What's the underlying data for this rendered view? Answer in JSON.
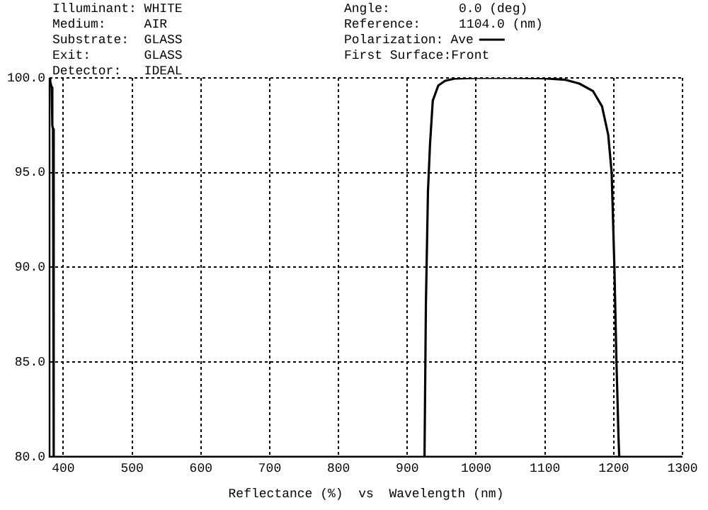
{
  "chart_data": {
    "type": "line",
    "xlabel": "Reflectance (%)  vs  Wavelength (nm)",
    "annotations": [
      "Illuminant: WHITE",
      "Medium:     AIR",
      "Substrate:  GLASS",
      "Exit:       GLASS",
      "Detector:   IDEAL",
      "Angle:         0.0 (deg)",
      "Reference:     1104.0 (nm)",
      "Polarization:",
      "First Surface:Front"
    ],
    "series": [
      {
        "name": "Ave",
        "color": "#000000",
        "x": [
          380,
          381,
          383,
          384,
          385,
          386,
          386.5,
          925,
          927,
          928,
          930,
          933,
          937,
          945,
          955,
          970,
          1000,
          1050,
          1100,
          1130,
          1150,
          1170,
          1183,
          1192,
          1197,
          1201,
          1204,
          1207,
          1208
        ],
        "values": [
          100,
          99.8,
          99.5,
          97.5,
          97.3,
          80,
          null,
          80,
          88,
          90,
          94,
          96.5,
          98.8,
          99.6,
          99.85,
          99.97,
          100,
          100,
          99.98,
          99.9,
          99.7,
          99.3,
          98.5,
          97,
          95,
          90,
          85,
          81,
          80
        ]
      }
    ],
    "xlim": [
      380,
      1300
    ],
    "xticks": [
      400,
      500,
      600,
      700,
      800,
      900,
      1000,
      1100,
      1200,
      1300
    ],
    "ylim": [
      80,
      100
    ],
    "yticks": [
      {
        "value": 80,
        "label": "80.0"
      },
      {
        "value": 85,
        "label": "85.0"
      },
      {
        "value": 90,
        "label": "90.0"
      },
      {
        "value": 95,
        "label": "95.0"
      },
      {
        "value": 100,
        "label": "100.0"
      }
    ],
    "grid": true,
    "legend": "top right",
    "line_style": "solid",
    "marker": "none"
  }
}
